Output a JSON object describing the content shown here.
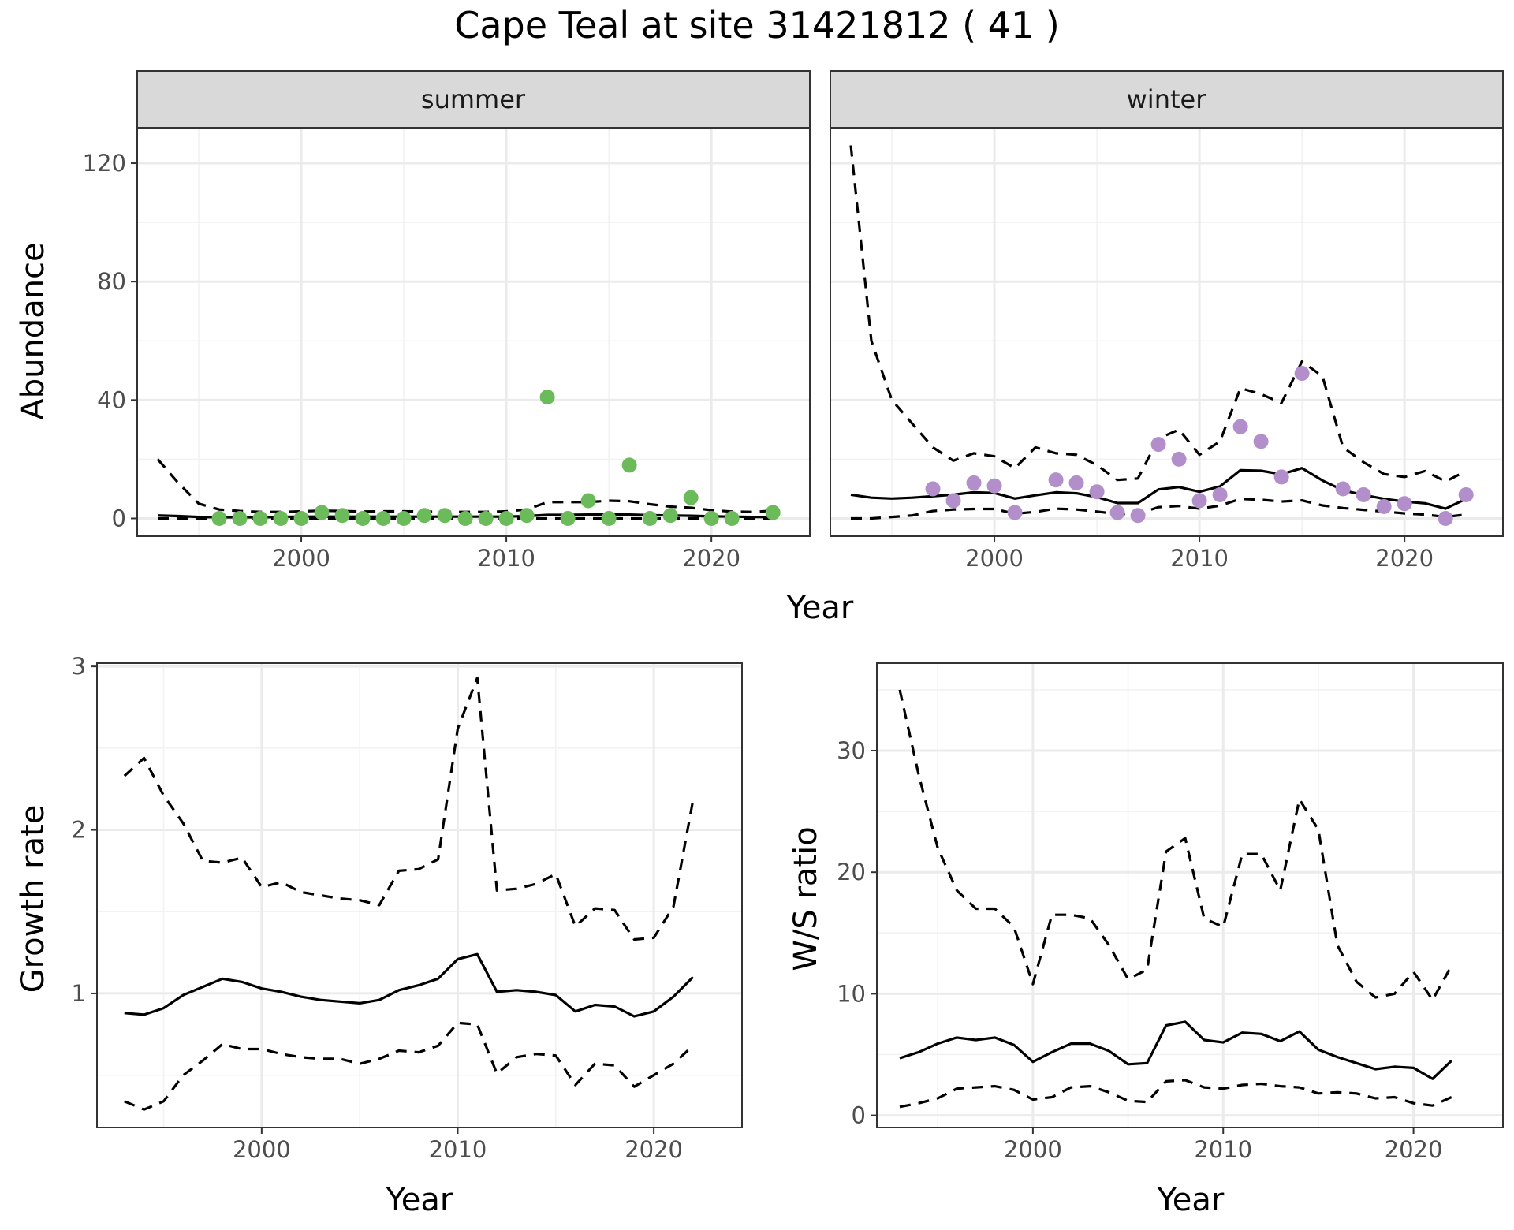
{
  "title": "Cape Teal at site 31421812 ( 41 )",
  "colors": {
    "summer": "#6bbb5a",
    "winter": "#b28fcb"
  },
  "chart_data": [
    {
      "type": "line",
      "panel": "summer",
      "strip_label": "summer",
      "xlabel": "Year",
      "ylabel": "Abundance",
      "xlim": [
        1992,
        2024.8
      ],
      "ylim": [
        -6,
        132
      ],
      "xticks": [
        2000,
        2010,
        2020
      ],
      "yticks": [
        0,
        40,
        80,
        120
      ],
      "x_label_shared": true,
      "series": [
        {
          "role": "estimate",
          "x": [
            1993,
            1994,
            1995,
            1996,
            1997,
            1998,
            1999,
            2000,
            2001,
            2002,
            2003,
            2004,
            2005,
            2006,
            2007,
            2008,
            2009,
            2010,
            2011,
            2012,
            2013,
            2014,
            2015,
            2016,
            2017,
            2018,
            2019,
            2020,
            2021,
            2022,
            2023
          ],
          "values": [
            1.0,
            0.8,
            0.5,
            0.4,
            0.4,
            0.4,
            0.5,
            0.6,
            0.6,
            0.6,
            0.6,
            0.6,
            0.6,
            0.6,
            0.6,
            0.6,
            0.6,
            0.6,
            0.8,
            1.2,
            1.2,
            1.3,
            1.3,
            1.3,
            1.1,
            1.0,
            0.9,
            0.7,
            0.6,
            0.5,
            0.5
          ]
        },
        {
          "role": "upper",
          "x": [
            1993,
            1994,
            1995,
            1996,
            1997,
            1998,
            1999,
            2000,
            2001,
            2002,
            2003,
            2004,
            2005,
            2006,
            2007,
            2008,
            2009,
            2010,
            2011,
            2012,
            2013,
            2014,
            2015,
            2016,
            2017,
            2018,
            2019,
            2020,
            2021,
            2022,
            2023
          ],
          "values": [
            20,
            12,
            5,
            3,
            2.5,
            2.2,
            2.2,
            2.4,
            2.6,
            2.5,
            2.3,
            2.4,
            2.4,
            2.3,
            2.2,
            2.2,
            2.2,
            2.4,
            3.0,
            5.5,
            5.5,
            5.5,
            6.0,
            5.8,
            4.8,
            4.0,
            3.6,
            2.8,
            2.3,
            2.2,
            2.6
          ]
        },
        {
          "role": "lower",
          "x": [
            1993,
            1994,
            1995,
            1996,
            1997,
            1998,
            1999,
            2000,
            2001,
            2002,
            2003,
            2004,
            2005,
            2006,
            2007,
            2008,
            2009,
            2010,
            2011,
            2012,
            2013,
            2014,
            2015,
            2016,
            2017,
            2018,
            2019,
            2020,
            2021,
            2022,
            2023
          ],
          "values": [
            0,
            0,
            0,
            0,
            0,
            0,
            0,
            0,
            0,
            0,
            0,
            0,
            0,
            0,
            0,
            0,
            0,
            0,
            0,
            0,
            0,
            0,
            0,
            0,
            0,
            0,
            0,
            0,
            0,
            0,
            0
          ]
        }
      ],
      "points": {
        "x": [
          1996,
          1997,
          1998,
          1999,
          2000,
          2001,
          2002,
          2003,
          2004,
          2005,
          2006,
          2007,
          2008,
          2009,
          2010,
          2011,
          2012,
          2013,
          2014,
          2015,
          2016,
          2017,
          2018,
          2019,
          2020,
          2021,
          2023
        ],
        "y": [
          0,
          0,
          0,
          0,
          0,
          2,
          1,
          0,
          0,
          0,
          1,
          1,
          0,
          0,
          0,
          1,
          41,
          0,
          6,
          0,
          18,
          0,
          1,
          7,
          0,
          0,
          2
        ]
      }
    },
    {
      "type": "line",
      "panel": "winter",
      "strip_label": "winter",
      "xlabel": "Year",
      "ylabel": "",
      "xlim": [
        1992,
        2024.8
      ],
      "ylim": [
        -6,
        132
      ],
      "xticks": [
        2000,
        2010,
        2020
      ],
      "yticks": [],
      "series": [
        {
          "role": "estimate",
          "x": [
            1993,
            1994,
            1995,
            1996,
            1997,
            1998,
            1999,
            2000,
            2001,
            2002,
            2003,
            2004,
            2005,
            2006,
            2007,
            2008,
            2009,
            2010,
            2011,
            2012,
            2013,
            2014,
            2015,
            2016,
            2017,
            2018,
            2019,
            2020,
            2021,
            2022,
            2023
          ],
          "values": [
            8,
            7,
            6.7,
            7,
            7.5,
            8,
            8.8,
            8.6,
            6.7,
            7.8,
            8.8,
            8.5,
            7.2,
            5.2,
            5.2,
            9.8,
            10.6,
            9.0,
            10.8,
            16.3,
            16.1,
            14.9,
            17.0,
            12.8,
            9.5,
            7.9,
            6.6,
            5.7,
            5.1,
            3.3,
            6.6
          ]
        },
        {
          "role": "upper",
          "x": [
            1993,
            1994,
            1995,
            1996,
            1997,
            1998,
            1999,
            2000,
            2001,
            2002,
            2003,
            2004,
            2005,
            2006,
            2007,
            2008,
            2009,
            2010,
            2011,
            2012,
            2013,
            2014,
            2015,
            2016,
            2017,
            2018,
            2019,
            2020,
            2021,
            2022,
            2023
          ],
          "values": [
            126,
            60,
            40,
            32,
            24,
            19.5,
            22,
            21,
            17,
            24,
            22,
            21.5,
            18,
            13,
            13.5,
            27,
            30,
            21.5,
            26,
            44,
            42,
            39,
            53,
            48,
            24,
            19,
            15,
            14,
            16,
            12.5,
            16
          ]
        },
        {
          "role": "lower",
          "x": [
            1993,
            1994,
            1995,
            1996,
            1997,
            1998,
            1999,
            2000,
            2001,
            2002,
            2003,
            2004,
            2005,
            2006,
            2007,
            2008,
            2009,
            2010,
            2011,
            2012,
            2013,
            2014,
            2015,
            2016,
            2017,
            2018,
            2019,
            2020,
            2021,
            2022,
            2023
          ],
          "values": [
            0,
            0,
            0.5,
            1,
            2.5,
            3,
            3.2,
            3.2,
            1.6,
            2.2,
            3.3,
            3.0,
            2.3,
            1.5,
            1.5,
            3.8,
            4.2,
            3.3,
            4.3,
            6.6,
            6.3,
            5.7,
            6.1,
            4.4,
            3.5,
            2.9,
            2.3,
            1.7,
            1.3,
            0.5,
            1.3
          ]
        }
      ],
      "points": {
        "x": [
          1997,
          1998,
          1999,
          2000,
          2001,
          2003,
          2004,
          2005,
          2006,
          2007,
          2008,
          2009,
          2010,
          2011,
          2012,
          2013,
          2014,
          2015,
          2017,
          2018,
          2019,
          2020,
          2022,
          2023
        ],
        "y": [
          10,
          6,
          12,
          11,
          2,
          13,
          12,
          9,
          2,
          1,
          25,
          20,
          6,
          8,
          31,
          26,
          14,
          49,
          10,
          8,
          4,
          5,
          0,
          8
        ]
      }
    },
    {
      "type": "line",
      "panel": "growth",
      "xlabel": "Year",
      "ylabel": "Growth rate",
      "xlim": [
        1991.6,
        2024.5
      ],
      "ylim": [
        0.18,
        3.02
      ],
      "xticks": [
        2000,
        2010,
        2020
      ],
      "yticks": [
        1,
        2,
        3
      ],
      "series": [
        {
          "role": "estimate",
          "x": [
            1993,
            1994,
            1995,
            1996,
            1997,
            1998,
            1999,
            2000,
            2001,
            2002,
            2003,
            2004,
            2005,
            2006,
            2007,
            2008,
            2009,
            2010,
            2011,
            2012,
            2013,
            2014,
            2015,
            2016,
            2017,
            2018,
            2019,
            2020,
            2021,
            2022
          ],
          "values": [
            0.88,
            0.87,
            0.91,
            0.99,
            1.04,
            1.09,
            1.07,
            1.03,
            1.01,
            0.98,
            0.96,
            0.95,
            0.94,
            0.96,
            1.02,
            1.05,
            1.09,
            1.21,
            1.24,
            1.01,
            1.02,
            1.01,
            0.99,
            0.89,
            0.93,
            0.92,
            0.86,
            0.89,
            0.98,
            1.1
          ]
        },
        {
          "role": "upper",
          "x": [
            1993,
            1994,
            1995,
            1996,
            1997,
            1998,
            1999,
            2000,
            2001,
            2002,
            2003,
            2004,
            2005,
            2006,
            2007,
            2008,
            2009,
            2010,
            2011,
            2012,
            2013,
            2014,
            2015,
            2016,
            2017,
            2018,
            2019,
            2020,
            2021,
            2022
          ],
          "values": [
            2.33,
            2.44,
            2.21,
            2.04,
            1.81,
            1.8,
            1.83,
            1.65,
            1.68,
            1.62,
            1.6,
            1.58,
            1.57,
            1.54,
            1.75,
            1.76,
            1.82,
            2.62,
            2.93,
            1.63,
            1.64,
            1.67,
            1.73,
            1.41,
            1.52,
            1.51,
            1.33,
            1.34,
            1.53,
            2.18
          ]
        },
        {
          "role": "lower",
          "x": [
            1993,
            1994,
            1995,
            1996,
            1997,
            1998,
            1999,
            2000,
            2001,
            2002,
            2003,
            2004,
            2005,
            2006,
            2007,
            2008,
            2009,
            2010,
            2011,
            2012,
            2013,
            2014,
            2015,
            2016,
            2017,
            2018,
            2019,
            2020,
            2021,
            2022
          ],
          "values": [
            0.34,
            0.29,
            0.34,
            0.5,
            0.59,
            0.69,
            0.66,
            0.66,
            0.63,
            0.61,
            0.6,
            0.6,
            0.57,
            0.6,
            0.65,
            0.64,
            0.68,
            0.82,
            0.81,
            0.51,
            0.61,
            0.63,
            0.62,
            0.44,
            0.57,
            0.56,
            0.43,
            0.5,
            0.57,
            0.68
          ]
        }
      ]
    },
    {
      "type": "line",
      "panel": "ratio",
      "xlabel": "Year",
      "ylabel": "W/S ratio",
      "xlim": [
        1991.8,
        2024.7
      ],
      "ylim": [
        -1,
        37.2
      ],
      "xticks": [
        2000,
        2010,
        2020
      ],
      "yticks": [
        0,
        10,
        20,
        30
      ],
      "series": [
        {
          "role": "estimate",
          "x": [
            1993,
            1994,
            1995,
            1996,
            1997,
            1998,
            1999,
            2000,
            2001,
            2002,
            2003,
            2004,
            2005,
            2006,
            2007,
            2008,
            2009,
            2010,
            2011,
            2012,
            2013,
            2014,
            2015,
            2016,
            2017,
            2018,
            2019,
            2020,
            2021,
            2022
          ],
          "values": [
            4.7,
            5.2,
            5.9,
            6.4,
            6.2,
            6.4,
            5.8,
            4.4,
            5.2,
            5.9,
            5.9,
            5.3,
            4.2,
            4.3,
            7.4,
            7.7,
            6.2,
            6.0,
            6.8,
            6.7,
            6.1,
            6.9,
            5.4,
            4.8,
            4.3,
            3.8,
            4.0,
            3.9,
            3.0,
            4.5
          ]
        },
        {
          "role": "upper",
          "x": [
            1993,
            1994,
            1995,
            1996,
            1997,
            1998,
            1999,
            2000,
            2001,
            2002,
            2003,
            2004,
            2005,
            2006,
            2007,
            2008,
            2009,
            2010,
            2011,
            2012,
            2013,
            2014,
            2015,
            2016,
            2017,
            2018,
            2019,
            2020,
            2021,
            2022
          ],
          "values": [
            35,
            28,
            22,
            18.5,
            17,
            17,
            15.5,
            10.8,
            16.5,
            16.5,
            16.2,
            14,
            11.2,
            12,
            21.7,
            22.8,
            16.2,
            15.5,
            21.5,
            21.5,
            18.5,
            26,
            23.5,
            14,
            11,
            9.7,
            10,
            11.8,
            9.5,
            12.3
          ]
        },
        {
          "role": "lower",
          "x": [
            1993,
            1994,
            1995,
            1996,
            1997,
            1998,
            1999,
            2000,
            2001,
            2002,
            2003,
            2004,
            2005,
            2006,
            2007,
            2008,
            2009,
            2010,
            2011,
            2012,
            2013,
            2014,
            2015,
            2016,
            2017,
            2018,
            2019,
            2020,
            2021,
            2022
          ],
          "values": [
            0.7,
            1.0,
            1.4,
            2.2,
            2.3,
            2.4,
            2.1,
            1.3,
            1.5,
            2.3,
            2.4,
            1.9,
            1.2,
            1.1,
            2.8,
            2.9,
            2.3,
            2.2,
            2.5,
            2.6,
            2.4,
            2.3,
            1.8,
            1.9,
            1.8,
            1.4,
            1.5,
            1.0,
            0.8,
            1.5
          ]
        }
      ]
    }
  ]
}
